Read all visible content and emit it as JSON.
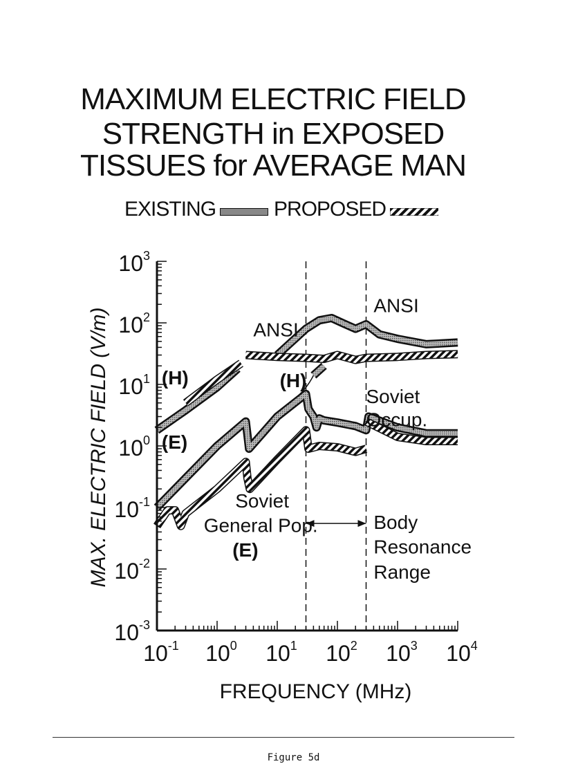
{
  "title_lines": [
    "MAXIMUM ELECTRIC FIELD",
    "STRENGTH in EXPOSED",
    "TISSUES for AVERAGE MAN"
  ],
  "legend": {
    "existing": "EXISTING",
    "proposed": "PROPOSED"
  },
  "caption": "Figure 5d",
  "chart_data": {
    "type": "line",
    "xlabel": "FREQUENCY (MHz)",
    "ylabel": "MAX. ELECTRIC FIELD (V/m)",
    "xscale": "log",
    "yscale": "log",
    "xlim": [
      0.1,
      10000
    ],
    "ylim": [
      0.001,
      1000
    ],
    "xticks": [
      {
        "base": "10",
        "exp": "-1"
      },
      {
        "base": "10",
        "exp": "0"
      },
      {
        "base": "10",
        "exp": "1"
      },
      {
        "base": "10",
        "exp": "2"
      },
      {
        "base": "10",
        "exp": "3"
      },
      {
        "base": "10",
        "exp": "4"
      }
    ],
    "yticks": [
      {
        "base": "10",
        "exp": "-3"
      },
      {
        "base": "10",
        "exp": "-2"
      },
      {
        "base": "10",
        "exp": "-1"
      },
      {
        "base": "10",
        "exp": "0"
      },
      {
        "base": "10",
        "exp": "1"
      },
      {
        "base": "10",
        "exp": "2"
      },
      {
        "base": "10",
        "exp": "3"
      }
    ],
    "series": [
      {
        "style": "existing",
        "label_group": "ANSI",
        "x": [
          10,
          30,
          50,
          80,
          120,
          200,
          300,
          500,
          1000,
          3000,
          10000
        ],
        "y": [
          30,
          80,
          110,
          120,
          100,
          80,
          95,
          65,
          55,
          45,
          48
        ]
      },
      {
        "style": "proposed",
        "label_group": "ANSI",
        "x": [
          3,
          10,
          30,
          60,
          100,
          200,
          300,
          1000,
          3000,
          10000
        ],
        "y": [
          30,
          28,
          27,
          26,
          30,
          25,
          27,
          28,
          30,
          31
        ]
      },
      {
        "style": "existing",
        "label_group": "ANSI (H)",
        "x": [
          0.1,
          0.3,
          1,
          2.2
        ],
        "y": [
          1.8,
          3.8,
          9,
          18
        ]
      },
      {
        "style": "proposed",
        "label_group": "ANSI (H)",
        "x": [
          0.3,
          1,
          2.5
        ],
        "y": [
          5,
          12,
          22
        ]
      },
      {
        "style": "existing",
        "label_group": "ANSI (H)",
        "x": [
          40,
          60
        ],
        "y": [
          14,
          20
        ]
      },
      {
        "style": "existing",
        "label_group": "Soviet Occup.",
        "x": [
          0.1,
          0.3,
          1,
          3,
          3.2,
          3.4,
          10,
          30,
          33,
          36,
          40,
          45,
          50,
          60,
          100,
          200,
          300,
          330,
          1000,
          3000,
          10000
        ],
        "y": [
          0.1,
          0.3,
          1,
          2.5,
          1.5,
          0.9,
          3,
          7,
          4,
          3.5,
          3,
          2,
          2.8,
          2.6,
          2.4,
          2.1,
          1.8,
          3,
          2,
          1.6,
          1.6
        ]
      },
      {
        "style": "proposed",
        "label_group": "Soviet Occup.",
        "x": [
          300,
          1000,
          3000,
          10000
        ],
        "y": [
          2.5,
          1.4,
          1.2,
          1.2
        ]
      },
      {
        "style": "proposed",
        "label_group": "Soviet General Pop.",
        "x": [
          0.1,
          0.15,
          0.2,
          0.25,
          0.3,
          1,
          3,
          3.2,
          3.5,
          10,
          30,
          33,
          50,
          100,
          200,
          300
        ],
        "y": [
          0.05,
          0.09,
          0.09,
          0.05,
          0.08,
          0.2,
          0.55,
          0.3,
          0.2,
          0.6,
          1.8,
          0.9,
          1.0,
          0.95,
          0.8,
          0.9
        ]
      }
    ],
    "annotations": [
      {
        "text": "ANSI",
        "x": 4,
        "y": 60
      },
      {
        "text": "ANSI",
        "x": 400,
        "y": 150
      },
      {
        "text": "(H)",
        "x": 0.12,
        "y": 10
      },
      {
        "text": "(H)",
        "x": 11,
        "y": 9
      },
      {
        "text": "Soviet",
        "x": 300,
        "y": 5
      },
      {
        "text": "Occup.",
        "x": 300,
        "y": 2.1
      },
      {
        "text": "(E)",
        "x": 0.12,
        "y": 0.9
      },
      {
        "text": "Soviet",
        "x": 2,
        "y": 0.1
      },
      {
        "text": "General Pop.",
        "x": 0.6,
        "y": 0.04
      },
      {
        "text": "(E)",
        "x": 1.8,
        "y": 0.016
      },
      {
        "text": "Body",
        "x": 400,
        "y": 0.045
      },
      {
        "text": "Resonance",
        "x": 400,
        "y": 0.018
      },
      {
        "text": "Range",
        "x": 400,
        "y": 0.007
      }
    ],
    "resonance_range": [
      30,
      300
    ]
  },
  "colors": {
    "ink": "#111111",
    "existing_fill": "#8a8a8a"
  }
}
